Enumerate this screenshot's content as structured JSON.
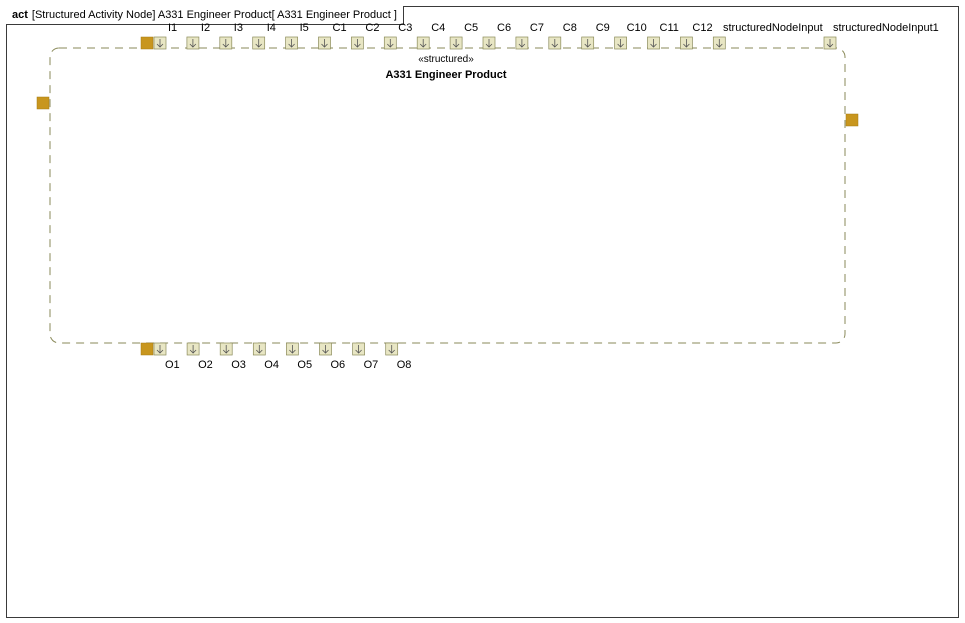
{
  "frame": {
    "kind": "act",
    "title": "[Structured Activity Node] A331 Engineer Product[ A331 Engineer Product ]"
  },
  "node": {
    "stereotype": "«structured»",
    "name": "A331 Engineer Product"
  },
  "input_pins": [
    "I1",
    "I2",
    "I3",
    "I4",
    "I5",
    "C1",
    "C2",
    "C3",
    "C4",
    "C5",
    "C6",
    "C7",
    "C8",
    "C9",
    "C10",
    "C11",
    "C12",
    "structuredNodeInput",
    "structuredNodeInput1"
  ],
  "output_pins": [
    "O1",
    "O2",
    "O3",
    "O4",
    "O5",
    "O6",
    "O7",
    "O8"
  ],
  "colors": {
    "pin_fill": "#e8e6c4",
    "pin_stroke": "#8a8a5a",
    "control_pin": "#c8961e",
    "border_dash": "#8a8a5a"
  }
}
